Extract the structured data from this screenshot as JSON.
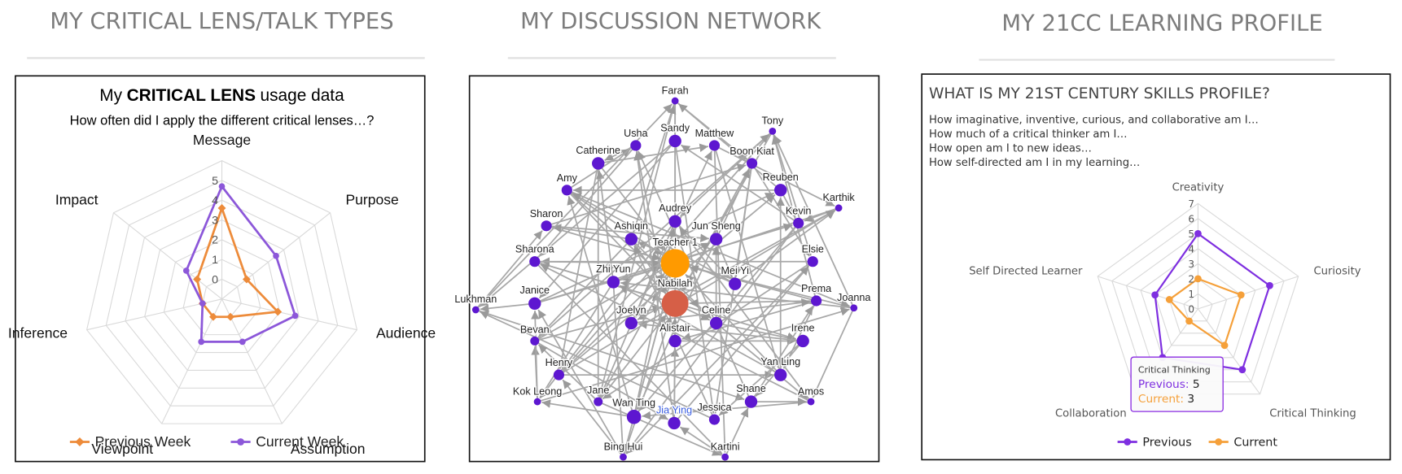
{
  "headings": [
    "MY CRITICAL LENS/TALK TYPES",
    "MY DISCUSSION NETWORK",
    "MY 21CC LEARNING PROFILE"
  ],
  "chart_data": [
    {
      "type": "radar",
      "title_parts": [
        "My",
        "CRITICAL LENS",
        "usage data"
      ],
      "subtitle": "How often did I apply the different critical lenses…?",
      "categories": [
        "Message",
        "Purpose",
        "Audience",
        "Assumption",
        "Viewpoint",
        "Inference",
        "Impact"
      ],
      "series": [
        {
          "name": "Previous Week",
          "color": "#ed8b3a",
          "marker": "diamond",
          "values": [
            3.6,
            0.6,
            1.9,
            0,
            0,
            0,
            0.6
          ]
        },
        {
          "name": "Current Week",
          "color": "#8c57d9",
          "marker": "circle",
          "values": [
            4.7,
            2.5,
            2.8,
            1.4,
            1.4,
            0,
            1.3
          ]
        }
      ],
      "rlim": [
        -1,
        6
      ],
      "rticks": [
        0,
        1,
        2,
        3,
        4,
        5
      ],
      "grid": true,
      "legend": "bottom"
    },
    {
      "type": "network",
      "nodes": [
        {
          "label": "Farah"
        },
        {
          "label": "Tony"
        },
        {
          "label": "Usha"
        },
        {
          "label": "Sandy"
        },
        {
          "label": "Matthew"
        },
        {
          "label": "Boon Kiat"
        },
        {
          "label": "Catherine"
        },
        {
          "label": "Reuben"
        },
        {
          "label": "Karthik"
        },
        {
          "label": "Amy"
        },
        {
          "label": "Audrey"
        },
        {
          "label": "Kevin"
        },
        {
          "label": "Sharon"
        },
        {
          "label": "Ashiqin"
        },
        {
          "label": "Jun Sheng"
        },
        {
          "label": "Teacher 1"
        },
        {
          "label": "Elsie"
        },
        {
          "label": "Sharona"
        },
        {
          "label": "Zhi Yun"
        },
        {
          "label": "Mei Yi"
        },
        {
          "label": "Nabilah"
        },
        {
          "label": "Prema"
        },
        {
          "label": "Joanna"
        },
        {
          "label": "Lukhman"
        },
        {
          "label": "Janice"
        },
        {
          "label": "Celine"
        },
        {
          "label": "Joelyn"
        },
        {
          "label": "Alistair"
        },
        {
          "label": "Irene"
        },
        {
          "label": "Bevan"
        },
        {
          "label": "Henry"
        },
        {
          "label": "Yan Ling"
        },
        {
          "label": "Kok Leong"
        },
        {
          "label": "Jane"
        },
        {
          "label": "Amos"
        },
        {
          "label": "Shane"
        },
        {
          "label": "Wan Ting"
        },
        {
          "label": "Jia Ying"
        },
        {
          "label": "Jessica"
        },
        {
          "label": "Bing Hui"
        },
        {
          "label": "Kartini"
        }
      ]
    },
    {
      "type": "radar",
      "title": "WHAT IS MY 21ST CENTURY SKILLS PROFILE?",
      "subtitle_lines": [
        "How imaginative, inventive, curious, and collaborative am I…",
        "How much of a critical thinker am I…",
        "How open am I to new ideas…",
        "How self-directed am I in my learning…"
      ],
      "categories": [
        "Creativity",
        "Curiosity",
        "Critical Thinking",
        "Collaboration",
        "Self Directed Learner"
      ],
      "series": [
        {
          "name": "Previous",
          "color": "#7e2fe0",
          "marker": "circle",
          "values": [
            5,
            5,
            5,
            4,
            3
          ]
        },
        {
          "name": "Current",
          "color": "#f5a03a",
          "marker": "circle",
          "values": [
            2,
            3,
            3,
            1,
            2
          ]
        }
      ],
      "rlim": [
        0,
        7
      ],
      "rticks": [
        0,
        1,
        2,
        3,
        4,
        5,
        6,
        7
      ],
      "grid": true,
      "legend": "bottom",
      "tooltip": {
        "title": "Critical Thinking",
        "rows": [
          {
            "label": "Previous:",
            "value": 5
          },
          {
            "label": "Current:",
            "value": 3
          }
        ]
      }
    }
  ]
}
